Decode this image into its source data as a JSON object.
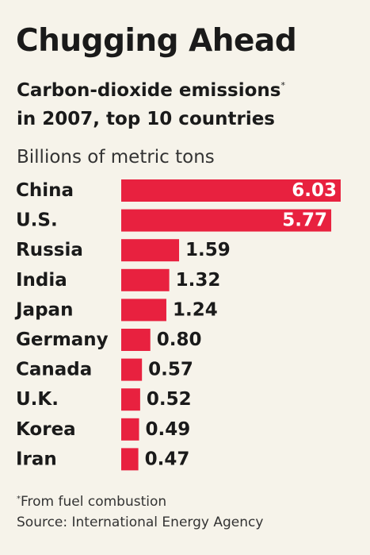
{
  "title": "Chugging Ahead",
  "subtitle": {
    "line1": "Carbon-dioxide emissions",
    "footnote_marker": "*",
    "line2": "in 2007, top 10 countries"
  },
  "unit_label": "Billions of metric tons",
  "footnotes": {
    "marker": "*",
    "fuel": "From fuel combustion",
    "source": "Source: International Energy Agency"
  },
  "colors": {
    "bar": "#e8213f",
    "inside_label": "#ffffff",
    "outside_label": "#1a1a1a"
  },
  "chart_data": {
    "type": "bar",
    "orientation": "horizontal",
    "categories": [
      "China",
      "U.S.",
      "Russia",
      "India",
      "Japan",
      "Germany",
      "Canada",
      "U.K.",
      "Korea",
      "Iran"
    ],
    "values": [
      6.03,
      5.77,
      1.59,
      1.32,
      1.24,
      0.8,
      0.57,
      0.52,
      0.49,
      0.47
    ],
    "value_labels": [
      "6.03",
      "5.77",
      "1.59",
      "1.32",
      "1.24",
      "0.80",
      "0.57",
      "0.52",
      "0.49",
      "0.47"
    ],
    "xlim": [
      0,
      6.03
    ],
    "grid": false,
    "legend": "none"
  }
}
